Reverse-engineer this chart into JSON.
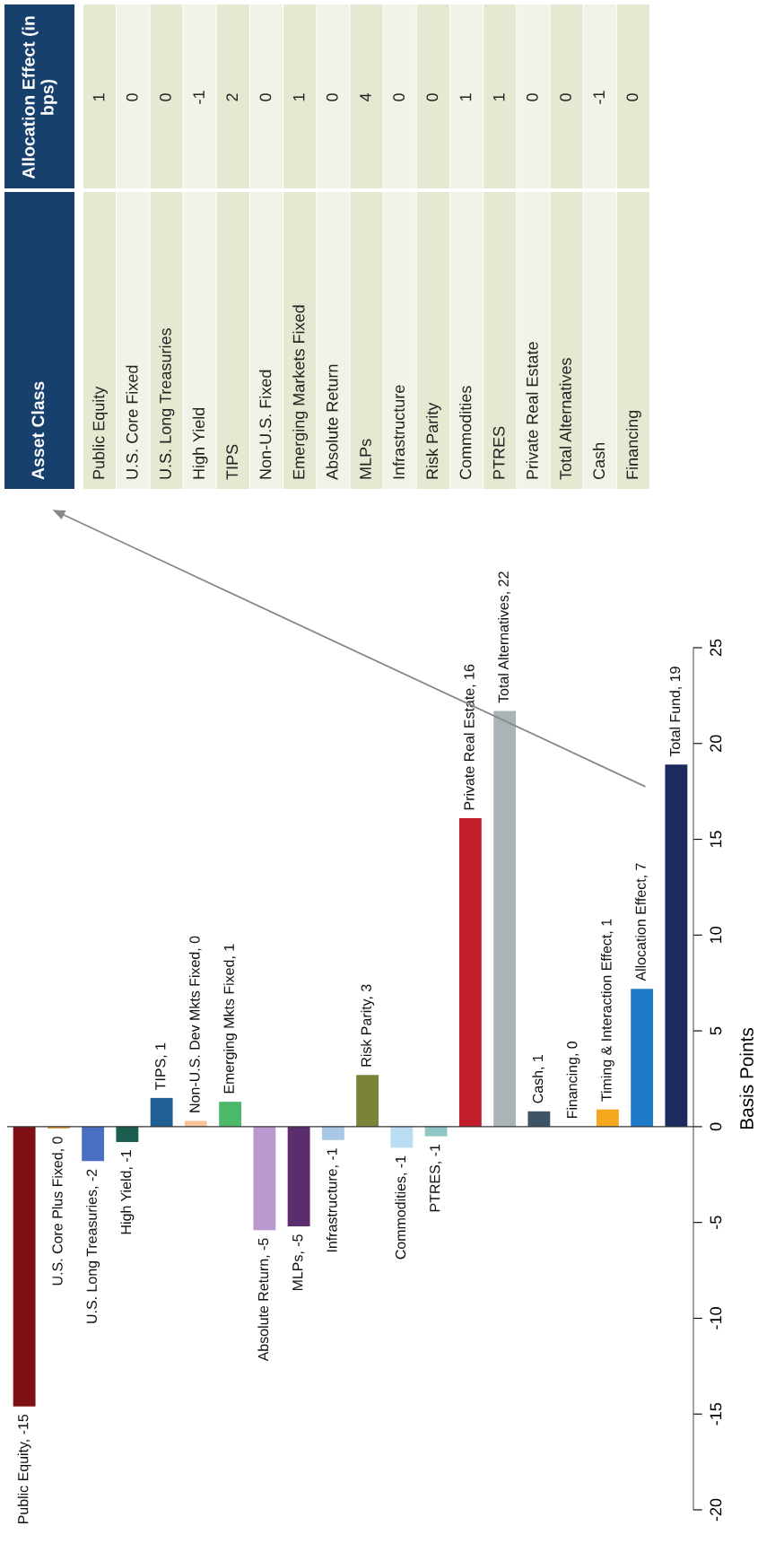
{
  "chart_data": [
    {
      "type": "bar",
      "ylabel": "Basis Points",
      "categories": [
        null,
        null,
        null,
        null,
        null,
        null,
        null,
        null,
        null,
        null,
        null,
        null,
        null,
        null,
        null,
        null,
        null,
        null,
        null,
        null
      ],
      "values": [
        -14.6,
        -0.1,
        -1.8,
        -0.8,
        1.5,
        0.3,
        1.3,
        -5.4,
        -5.2,
        -0.7,
        2.7,
        -1.1,
        -0.5,
        16.1,
        21.7,
        0.8,
        0,
        0.9,
        7.2,
        18.9
      ],
      "value_labels": [
        "Public Equity, -15",
        "U.S. Core Plus Fixed, 0",
        "U.S. Long Treasuries, -2",
        "High Yield, -1",
        "TIPS, 1",
        "Non-U.S. Dev Mkts Fixed, 0",
        "Emerging Mkts Fixed, 1",
        "Absolute Return, -5",
        "MLPs, -5",
        "Infrastructure, -1",
        "Risk Parity, 3",
        "Commodities, -1",
        "PTRES, -1",
        "Private Real Estate, 16",
        "Total Alternatives, 22",
        "Cash, 1",
        "Financing, 0",
        "Timing & Interaction Effect, 1",
        "Allocation Effect, 7",
        "Total Fund, 19"
      ],
      "colors": [
        "#7f1116",
        "#e8a04a",
        "#4a6fc0",
        "#1b5e50",
        "#1f5f94",
        "#f7c49a",
        "#4cb86a",
        "#b898cf",
        "#5b2d6e",
        "#a9c8e8",
        "#7a8338",
        "#b9def3",
        "#8fc7c7",
        "#c01e2a",
        "#aab4b6",
        "#3d5466",
        "#888888",
        "#f3a81d",
        "#1e7bc8",
        "#1d2a5e"
      ],
      "ylim": [
        -20,
        25
      ],
      "yticks": [
        -20,
        -15,
        -10,
        -5,
        0,
        5,
        10,
        15,
        20,
        25
      ],
      "ref_lines": [
        {
          "axis": "y",
          "value": 0,
          "color": "#333333"
        }
      ],
      "tick_labels": "y"
    },
    {
      "type": "other",
      "xlabel": "Asset Class",
      "ylabel": "Allocation Effect (in bps)",
      "categories": [
        "Public Equity",
        "U.S. Core Fixed",
        "U.S. Long Treasuries",
        "High Yield",
        "TIPS",
        "Non-U.S. Fixed",
        "Emerging Markets Fixed",
        "Absolute Return",
        "MLPs",
        "Infrastructure",
        "Risk Parity",
        "Commodities",
        "PTRES",
        "Private Real Estate",
        "Total Alternatives",
        "Cash",
        "Financing"
      ],
      "values": [
        1,
        0,
        0,
        -1,
        2,
        0,
        1,
        0,
        4,
        0,
        0,
        1,
        1,
        0,
        0,
        -1,
        0
      ],
      "data_labels": true
    }
  ]
}
